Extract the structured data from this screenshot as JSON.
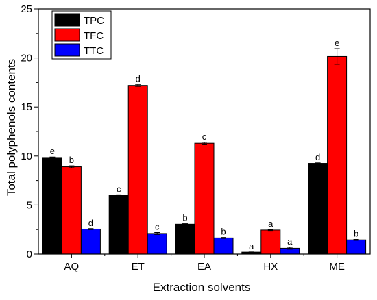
{
  "chart_data": {
    "type": "bar",
    "xlabel": "Extraction solvents",
    "ylabel": "Total polyphenols contents",
    "categories": [
      "AQ",
      "ET",
      "EA",
      "HX",
      "ME"
    ],
    "ylim": [
      0,
      25
    ],
    "yticks": [
      0,
      5,
      10,
      15,
      20,
      25
    ],
    "legend_position": "top-left",
    "series": [
      {
        "name": "TPC",
        "color": "#000000",
        "values": [
          9.85,
          6.0,
          3.05,
          0.2,
          9.25
        ],
        "errors": [
          0.05,
          0.05,
          0.05,
          0.02,
          0.05
        ],
        "letters": [
          "e",
          "c",
          "b",
          "a",
          "d"
        ]
      },
      {
        "name": "TFC",
        "color": "#ff0000",
        "values": [
          8.9,
          17.2,
          11.3,
          2.45,
          20.15
        ],
        "errors": [
          0.1,
          0.1,
          0.1,
          0.05,
          0.8
        ],
        "letters": [
          "b",
          "d",
          "c",
          "a",
          "e"
        ]
      },
      {
        "name": "TTC",
        "color": "#0000ff",
        "values": [
          2.55,
          2.1,
          1.65,
          0.6,
          1.45
        ],
        "errors": [
          0.05,
          0.1,
          0.05,
          0.1,
          0.05
        ],
        "letters": [
          "d",
          "c",
          "b",
          "a",
          "b"
        ]
      }
    ]
  }
}
